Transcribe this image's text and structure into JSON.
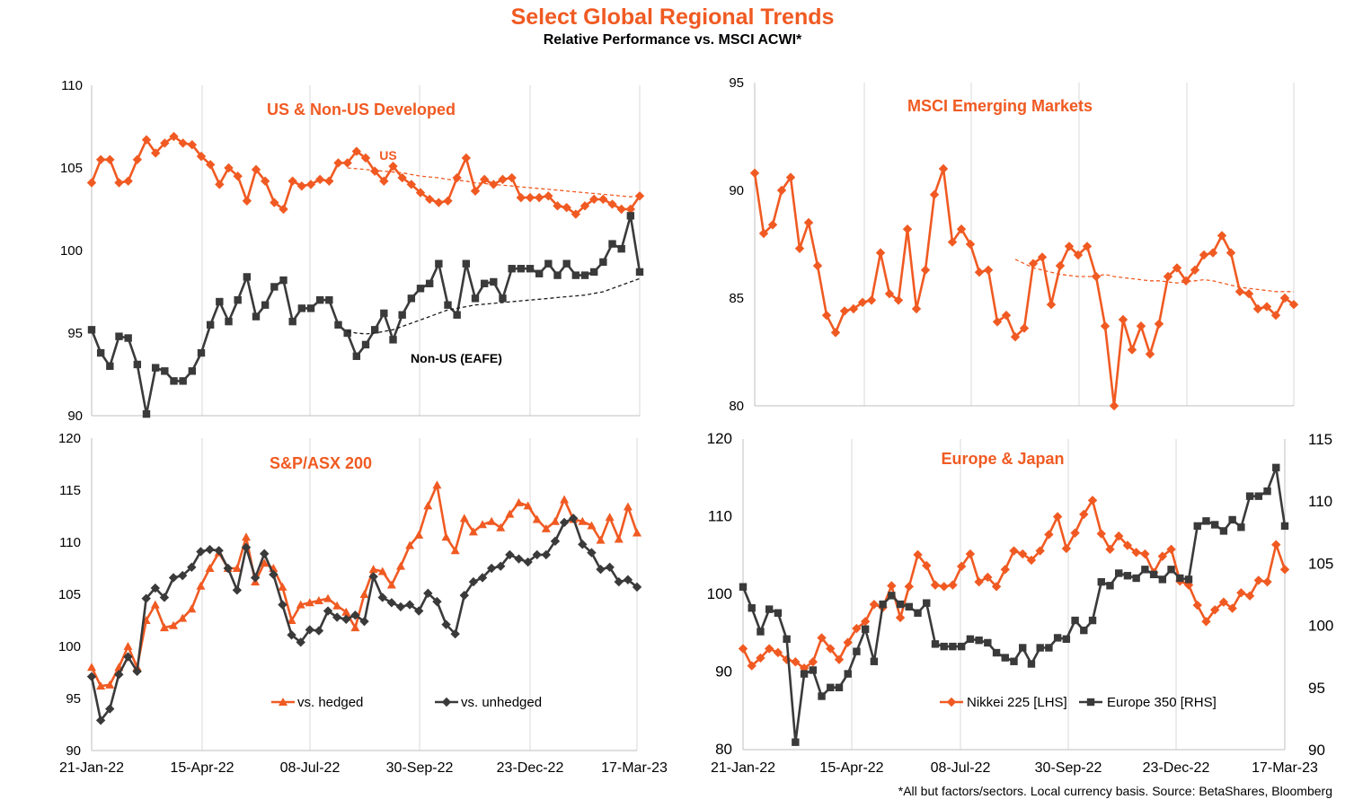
{
  "title": "Select Global Regional Trends",
  "subtitle": "Relative Performance vs. MSCI ACWI*",
  "footnote": "*All but factors/sectors.  Local currency  basis.  Source: BetaShares, Bloomberg",
  "colors": {
    "orange": "#f05a22",
    "dark": "#3a3a3a",
    "grid": "#d9d9d9"
  },
  "chart_data": [
    {
      "id": "us",
      "type": "line",
      "title": "US & Non-US  Developed",
      "x_tick_labels": [],
      "ylim": [
        90,
        110
      ],
      "y_ticks": [
        90,
        95,
        100,
        105,
        110
      ],
      "annotations": [
        "US",
        "Non-US (EAFE)"
      ],
      "series": [
        {
          "name": "US",
          "color": "#f05a22",
          "marker": "diamond",
          "values": [
            104.1,
            105.5,
            105.5,
            104.1,
            104.2,
            105.5,
            106.7,
            105.9,
            106.5,
            106.9,
            106.5,
            106.4,
            105.7,
            105.2,
            104.0,
            105.0,
            104.5,
            103.0,
            104.9,
            104.2,
            102.9,
            102.5,
            104.2,
            103.9,
            104.0,
            104.3,
            104.2,
            105.3,
            105.3,
            106.0,
            105.6,
            104.8,
            104.2,
            105.1,
            104.4,
            104.0,
            103.5,
            103.1,
            102.9,
            103.0,
            104.4,
            105.6,
            103.6,
            104.3,
            104.0,
            104.3,
            104.4,
            103.2,
            103.2,
            103.2,
            103.3,
            102.7,
            102.6,
            102.2,
            102.7,
            103.1,
            103.1,
            102.8,
            102.5,
            102.5,
            103.3
          ]
        },
        {
          "name": "US trend",
          "color": "#f05a22",
          "dashed": true,
          "start": 28,
          "values": [
            105.0,
            104.95,
            104.9,
            104.85,
            104.8,
            104.75,
            104.7,
            104.6,
            104.5,
            104.45,
            104.4,
            104.3,
            104.25,
            104.2,
            104.1,
            104.05,
            104.0,
            103.95,
            103.9,
            103.85,
            103.8,
            103.75,
            103.7,
            103.65,
            103.6,
            103.55,
            103.5,
            103.45,
            103.4,
            103.35,
            103.3,
            103.25,
            103.3
          ]
        },
        {
          "name": "Non-US (EAFE)",
          "color": "#3a3a3a",
          "marker": "square",
          "values": [
            95.2,
            93.8,
            93.0,
            94.8,
            94.7,
            93.1,
            90.1,
            92.9,
            92.7,
            92.1,
            92.1,
            92.7,
            93.8,
            95.5,
            96.9,
            95.7,
            97.0,
            98.4,
            96.0,
            96.7,
            97.8,
            98.2,
            95.7,
            96.5,
            96.5,
            97.0,
            97.0,
            95.5,
            95.0,
            93.6,
            94.3,
            95.2,
            96.2,
            94.6,
            96.1,
            97.1,
            97.7,
            98.0,
            99.2,
            96.7,
            96.1,
            99.2,
            97.1,
            98.0,
            98.1,
            97.1,
            98.9,
            98.9,
            98.9,
            98.6,
            99.2,
            98.5,
            99.2,
            98.5,
            98.5,
            98.7,
            99.3,
            100.4,
            100.1,
            102.1,
            98.7
          ]
        },
        {
          "name": "Non-US trend",
          "color": "#1a1a1a",
          "dashed": true,
          "start": 28,
          "values": [
            95.1,
            95.0,
            94.95,
            95.0,
            95.1,
            95.2,
            95.4,
            95.6,
            95.8,
            96.0,
            96.2,
            96.4,
            96.5,
            96.6,
            96.7,
            96.75,
            96.8,
            96.85,
            96.9,
            96.95,
            97.0,
            97.05,
            97.1,
            97.15,
            97.2,
            97.25,
            97.3,
            97.4,
            97.5,
            97.7,
            97.9,
            98.1,
            98.3
          ]
        }
      ]
    },
    {
      "id": "em",
      "type": "line",
      "title": "MSCI Emerging Markets",
      "x_tick_labels": [],
      "ylim": [
        80,
        95
      ],
      "y_ticks": [
        80,
        85,
        90,
        95
      ],
      "series": [
        {
          "name": "MSCI Emerging Markets",
          "color": "#f05a22",
          "marker": "diamond",
          "values": [
            90.8,
            88.0,
            88.4,
            90.0,
            90.6,
            87.3,
            88.5,
            86.5,
            84.2,
            83.4,
            84.4,
            84.5,
            84.8,
            84.9,
            87.1,
            85.2,
            84.9,
            88.2,
            84.5,
            86.3,
            89.8,
            91.0,
            87.6,
            88.2,
            87.5,
            86.2,
            86.3,
            83.9,
            84.2,
            83.2,
            83.6,
            86.6,
            86.9,
            84.7,
            86.5,
            87.4,
            87.0,
            87.4,
            86.0,
            83.7,
            80.0,
            84.0,
            82.6,
            83.7,
            82.4,
            83.8,
            86.0,
            86.4,
            85.8,
            86.3,
            87.0,
            87.1,
            87.9,
            87.1,
            85.3,
            85.2,
            84.5,
            84.6,
            84.2,
            85.0,
            84.7
          ]
        },
        {
          "name": "trend",
          "color": "#f05a22",
          "dashed": true,
          "start": 29,
          "values": [
            86.8,
            86.6,
            86.4,
            86.3,
            86.2,
            86.1,
            86.05,
            86.0,
            86.0,
            86.0,
            86.1,
            86.0,
            85.95,
            85.9,
            85.85,
            85.8,
            85.8,
            85.75,
            85.7,
            85.75,
            85.8,
            85.85,
            85.8,
            85.7,
            85.6,
            85.5,
            85.45,
            85.4,
            85.35,
            85.3,
            85.3,
            85.3
          ]
        }
      ]
    },
    {
      "id": "asx",
      "type": "line",
      "title": "S&P/ASX 200",
      "x_tick_labels": [
        "21-Jan-22",
        "15-Apr-22",
        "08-Jul-22",
        "30-Sep-22",
        "23-Dec-22",
        "17-Mar-23"
      ],
      "ylim": [
        90,
        120
      ],
      "y_ticks": [
        90,
        95,
        100,
        105,
        110,
        115,
        120
      ],
      "series": [
        {
          "name": "vs. hedged",
          "color": "#f05a22",
          "marker": "triangle",
          "values": [
            98.0,
            96.2,
            96.3,
            98.0,
            100.0,
            98.0,
            102.5,
            104.0,
            101.8,
            102.0,
            102.7,
            103.6,
            105.8,
            107.5,
            109.0,
            107.5,
            107.5,
            110.5,
            106.2,
            108.0,
            107.5,
            105.7,
            102.5,
            104.0,
            104.2,
            104.4,
            104.6,
            103.9,
            103.3,
            101.8,
            105.0,
            107.4,
            107.2,
            105.9,
            107.7,
            109.7,
            110.7,
            113.5,
            115.5,
            110.5,
            109.2,
            112.3,
            111.0,
            111.7,
            112.0,
            111.4,
            112.7,
            113.8,
            113.5,
            112.2,
            111.3,
            112.0,
            114.1,
            112.2,
            112.0,
            111.6,
            110.2,
            112.4,
            110.3,
            113.4,
            110.9
          ]
        },
        {
          "name": "vs. unhedged",
          "color": "#3a3a3a",
          "marker": "diamond",
          "values": [
            97.1,
            92.9,
            94.0,
            97.3,
            99.0,
            97.6,
            104.6,
            105.6,
            104.7,
            106.6,
            106.8,
            107.6,
            109.1,
            109.3,
            109.2,
            107.5,
            105.4,
            109.5,
            106.6,
            108.9,
            106.9,
            104.0,
            101.1,
            100.4,
            101.6,
            101.5,
            103.4,
            102.8,
            102.6,
            103.0,
            102.4,
            106.7,
            104.7,
            104.2,
            103.8,
            104.0,
            103.4,
            105.1,
            104.3,
            102.1,
            101.2,
            104.9,
            106.2,
            106.6,
            107.5,
            107.7,
            108.8,
            108.4,
            108.1,
            108.8,
            108.8,
            110.1,
            111.9,
            112.3,
            109.8,
            109.0,
            107.4,
            107.6,
            106.2,
            106.4,
            105.7
          ]
        }
      ]
    },
    {
      "id": "eujp",
      "type": "line",
      "title": "Europe & Japan",
      "x_tick_labels": [
        "21-Jan-22",
        "15-Apr-22",
        "08-Jul-22",
        "30-Sep-22",
        "23-Dec-22",
        "17-Mar-23"
      ],
      "ylim": [
        80,
        120
      ],
      "y_ticks": [
        80,
        90,
        100,
        110,
        120
      ],
      "ylim_right": [
        90,
        115
      ],
      "y_ticks_right": [
        90,
        95,
        100,
        105,
        110,
        115
      ],
      "series": [
        {
          "name": "Nikkei 225 [LHS]",
          "color": "#f05a22",
          "marker": "diamond",
          "axis": "left",
          "values": [
            93.0,
            90.8,
            91.8,
            93.0,
            92.5,
            91.6,
            91.3,
            90.5,
            91.3,
            94.4,
            93.0,
            91.6,
            93.8,
            95.6,
            96.5,
            98.7,
            98.3,
            101.1,
            97.0,
            101.0,
            105.1,
            103.7,
            101.2,
            101.0,
            101.2,
            103.6,
            105.2,
            101.6,
            102.2,
            101.0,
            103.2,
            105.6,
            105.2,
            104.4,
            105.6,
            107.7,
            110.0,
            105.9,
            107.9,
            110.3,
            112.1,
            107.8,
            105.8,
            107.5,
            106.3,
            105.4,
            105.2,
            102.8,
            104.9,
            105.8,
            101.7,
            101.2,
            98.6,
            96.5,
            98.0,
            99.0,
            98.2,
            100.2,
            99.8,
            101.8,
            101.6,
            106.4,
            103.2
          ]
        },
        {
          "name": "Europe 350 [RHS]",
          "color": "#3a3a3a",
          "marker": "square",
          "axis": "right",
          "values": [
            103.1,
            101.4,
            99.5,
            101.3,
            101.0,
            98.9,
            90.6,
            96.1,
            96.4,
            94.3,
            95.0,
            95.0,
            96.1,
            97.9,
            99.7,
            97.1,
            101.7,
            102.4,
            101.7,
            101.5,
            101.0,
            101.8,
            98.5,
            98.3,
            98.3,
            98.3,
            98.9,
            98.8,
            98.6,
            97.8,
            97.4,
            97.1,
            98.2,
            96.9,
            98.2,
            98.2,
            99.0,
            98.9,
            100.4,
            99.6,
            100.4,
            103.5,
            103.2,
            104.2,
            104.0,
            103.8,
            104.5,
            104.1,
            103.7,
            104.5,
            103.8,
            103.7,
            108.0,
            108.4,
            108.1,
            107.6,
            108.5,
            107.9,
            110.4,
            110.4,
            110.8,
            112.7,
            108.0
          ]
        }
      ]
    }
  ]
}
